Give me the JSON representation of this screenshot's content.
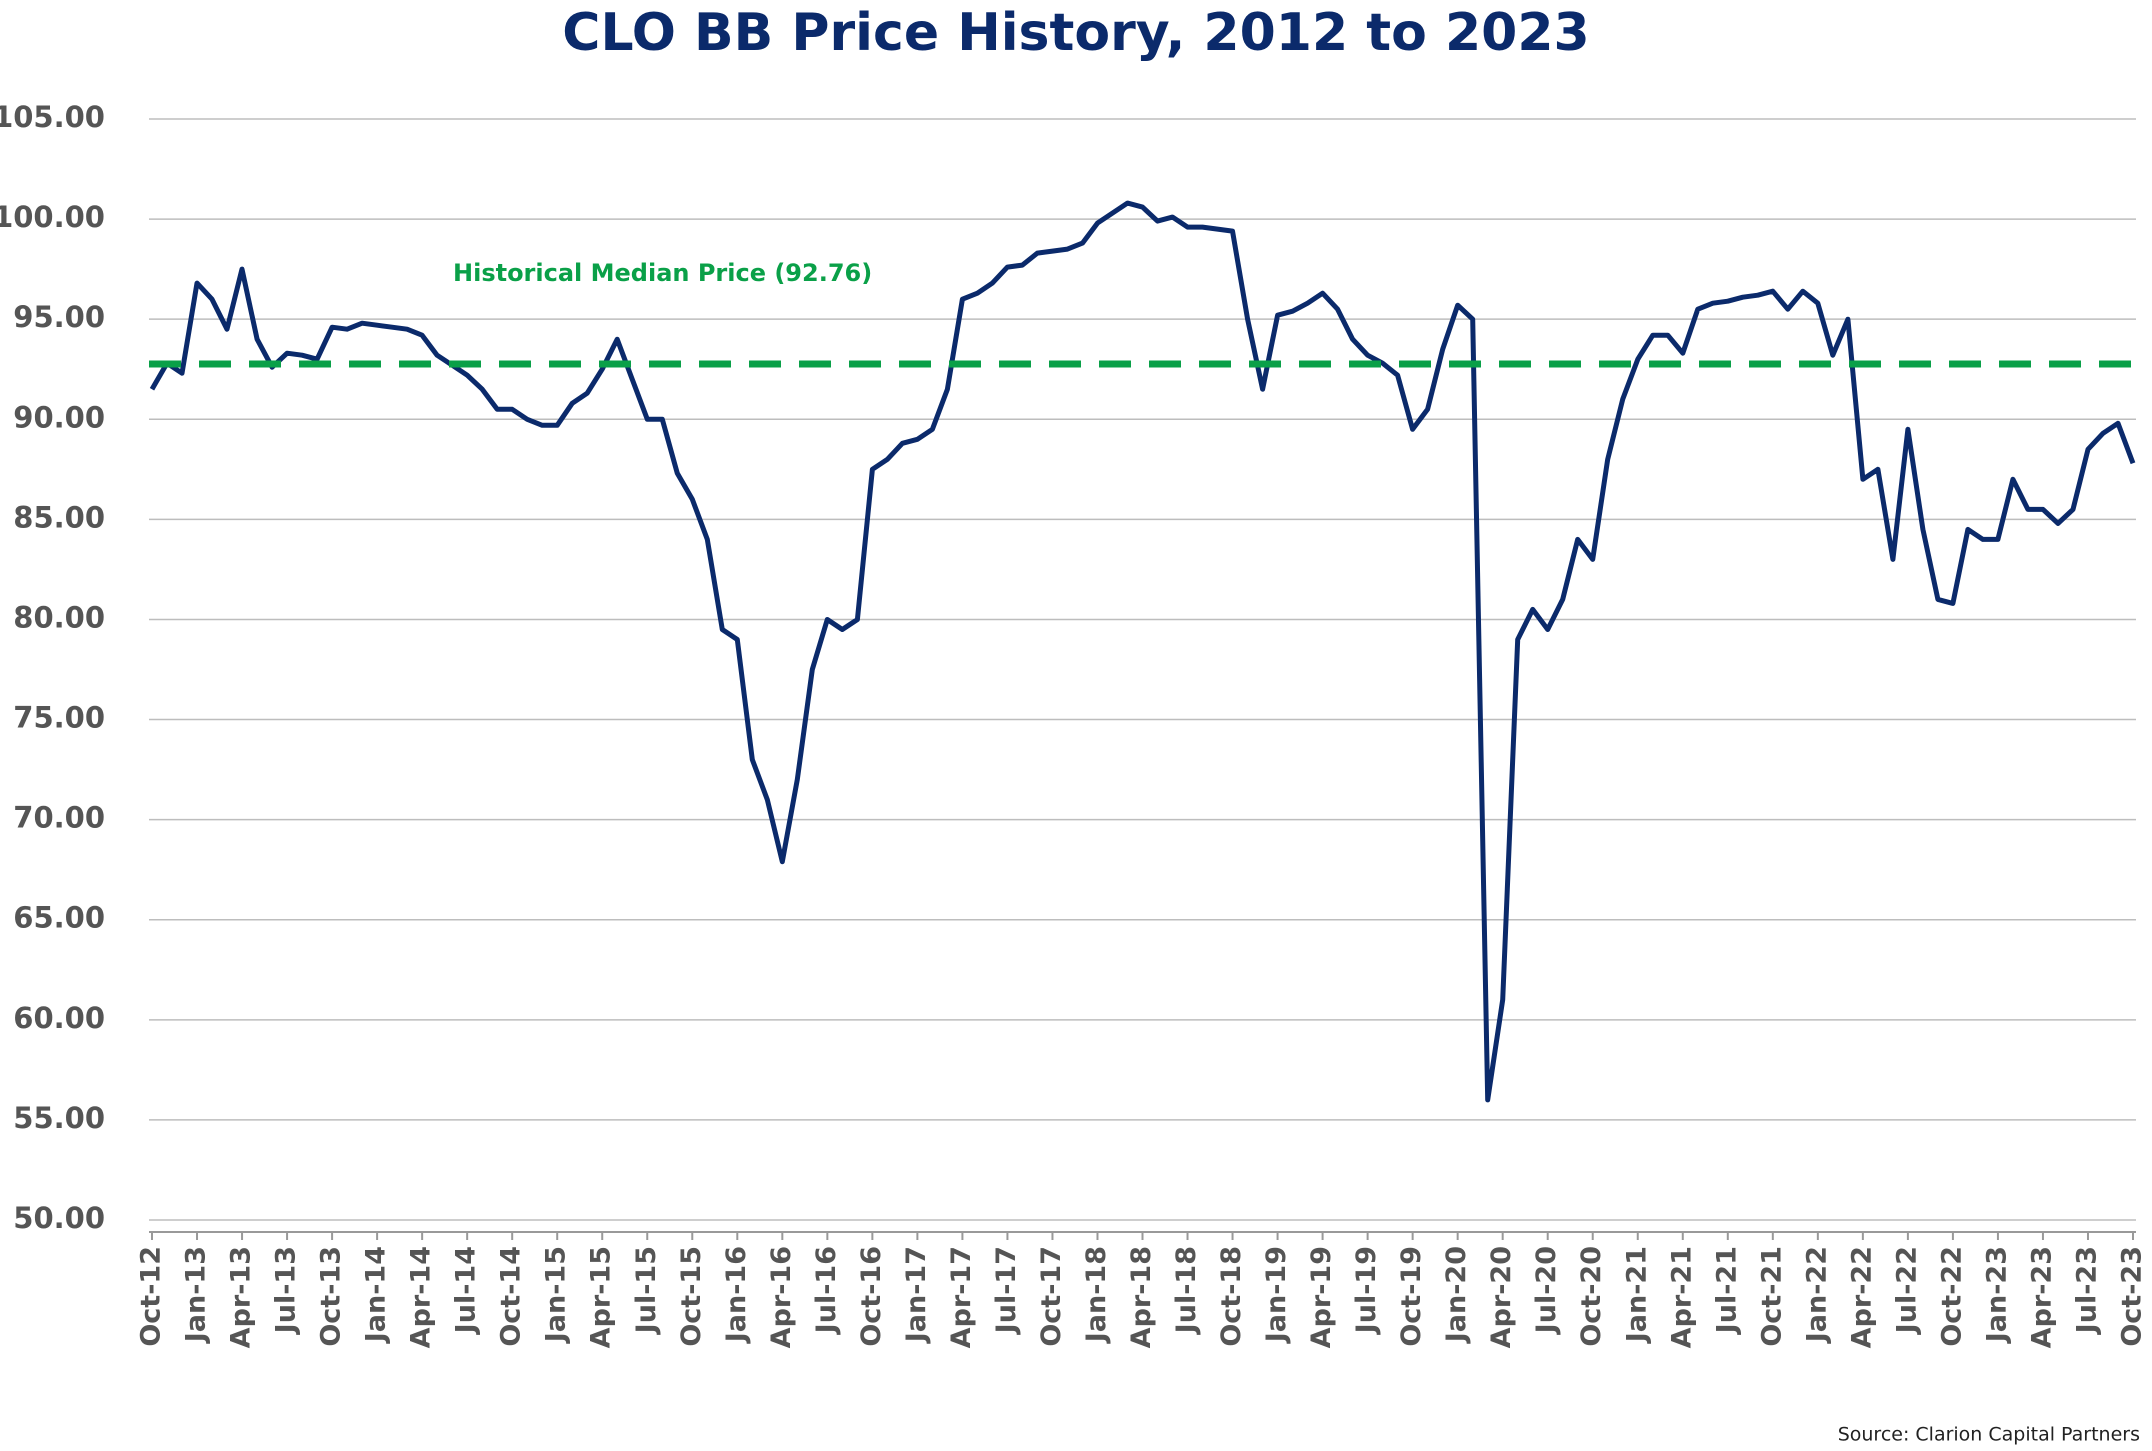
{
  "chart_data": {
    "type": "line",
    "title": "CLO BB Price History, 2012 to 2023",
    "source": "Source: Clarion Capital Partners",
    "categories": [
      "Oct-12",
      null,
      null,
      "Jan-13",
      null,
      null,
      "Apr-13",
      null,
      null,
      "Jul-13",
      null,
      null,
      "Oct-13",
      null,
      null,
      "Jan-14",
      null,
      null,
      "Apr-14",
      null,
      null,
      "Jul-14",
      null,
      null,
      "Oct-14",
      null,
      null,
      "Jan-15",
      null,
      null,
      "Apr-15",
      null,
      null,
      "Jul-15",
      null,
      null,
      "Oct-15",
      null,
      null,
      "Jan-16",
      null,
      null,
      "Apr-16",
      null,
      null,
      "Jul-16",
      null,
      null,
      "Oct-16",
      null,
      null,
      "Jan-17",
      null,
      null,
      "Apr-17",
      null,
      null,
      "Jul-17",
      null,
      null,
      "Oct-17",
      null,
      null,
      "Jan-18",
      null,
      null,
      "Apr-18",
      null,
      null,
      "Jul-18",
      null,
      null,
      "Oct-18",
      null,
      null,
      "Jan-19",
      null,
      null,
      "Apr-19",
      null,
      null,
      "Jul-19",
      null,
      null,
      "Oct-19",
      null,
      null,
      "Jan-20",
      null,
      null,
      "Apr-20",
      null,
      null,
      "Jul-20",
      null,
      null,
      "Oct-20",
      null,
      null,
      "Jan-21",
      null,
      null,
      "Apr-21",
      null,
      null,
      "Jul-21",
      null,
      null,
      "Oct-21",
      null,
      null,
      "Jan-22",
      null,
      null,
      "Apr-22",
      null,
      null,
      "Jul-22",
      null,
      null,
      "Oct-22",
      null,
      null,
      "Jan-23",
      null,
      null,
      "Apr-23",
      null,
      null,
      "Jul-23",
      null,
      null,
      "Oct-23"
    ],
    "series": [
      {
        "name": "CLO BB Price",
        "color": "#0b2a6b",
        "values": [
          91.5,
          92.8,
          92.3,
          96.8,
          96.0,
          94.5,
          97.5,
          94.0,
          92.6,
          93.3,
          93.2,
          93.0,
          94.6,
          94.5,
          94.8,
          94.7,
          94.6,
          94.5,
          94.2,
          93.2,
          92.7,
          92.2,
          91.5,
          90.5,
          90.5,
          90.0,
          89.7,
          89.7,
          90.8,
          91.3,
          92.5,
          94.0,
          92.0,
          90.0,
          90.0,
          87.3,
          86.0,
          84.0,
          79.5,
          79.0,
          73.0,
          71.0,
          67.9,
          72.0,
          77.5,
          80.0,
          79.5,
          80.0,
          87.5,
          88.0,
          88.8,
          89.0,
          89.5,
          91.5,
          96.0,
          96.3,
          96.8,
          97.6,
          97.7,
          98.3,
          98.4,
          98.5,
          98.8,
          99.8,
          100.3,
          100.8,
          100.6,
          99.9,
          100.1,
          99.6,
          99.6,
          99.5,
          99.4,
          95.0,
          91.5,
          95.2,
          95.4,
          95.8,
          96.3,
          95.5,
          94.0,
          93.2,
          92.8,
          92.2,
          89.5,
          90.5,
          93.5,
          95.7,
          95.0,
          56.0,
          61.0,
          79.0,
          80.5,
          79.5,
          81.0,
          84.0,
          83.0,
          88.0,
          91.0,
          93.0,
          94.2,
          94.2,
          93.3,
          95.5,
          95.8,
          95.9,
          96.1,
          96.2,
          96.4,
          95.5,
          96.4,
          95.8,
          93.2,
          95.0,
          87.0,
          87.5,
          83.0,
          89.5,
          84.5,
          81.0,
          80.8,
          84.5,
          84.0,
          84.0,
          87.0,
          85.5,
          85.5,
          84.8,
          85.5,
          88.5,
          89.3,
          89.8,
          87.8
        ]
      }
    ],
    "median": {
      "value": 92.76,
      "label": "Historical Median Price (92.76)",
      "color": "#0aa048"
    },
    "ylim": [
      50,
      105
    ],
    "yticks": [
      {
        "value": 50,
        "label": "50.00"
      },
      {
        "value": 55,
        "label": "55.00"
      },
      {
        "value": 60,
        "label": "60.00"
      },
      {
        "value": 65,
        "label": "65.00"
      },
      {
        "value": 70,
        "label": "70.00"
      },
      {
        "value": 75,
        "label": "75.00"
      },
      {
        "value": 80,
        "label": "80.00"
      },
      {
        "value": 85,
        "label": "85.00"
      },
      {
        "value": 90,
        "label": "90.00"
      },
      {
        "value": 95,
        "label": "95.00"
      },
      {
        "value": 100,
        "label": "100.00"
      },
      {
        "value": 105,
        "label": "105.00"
      }
    ],
    "grid": true
  }
}
